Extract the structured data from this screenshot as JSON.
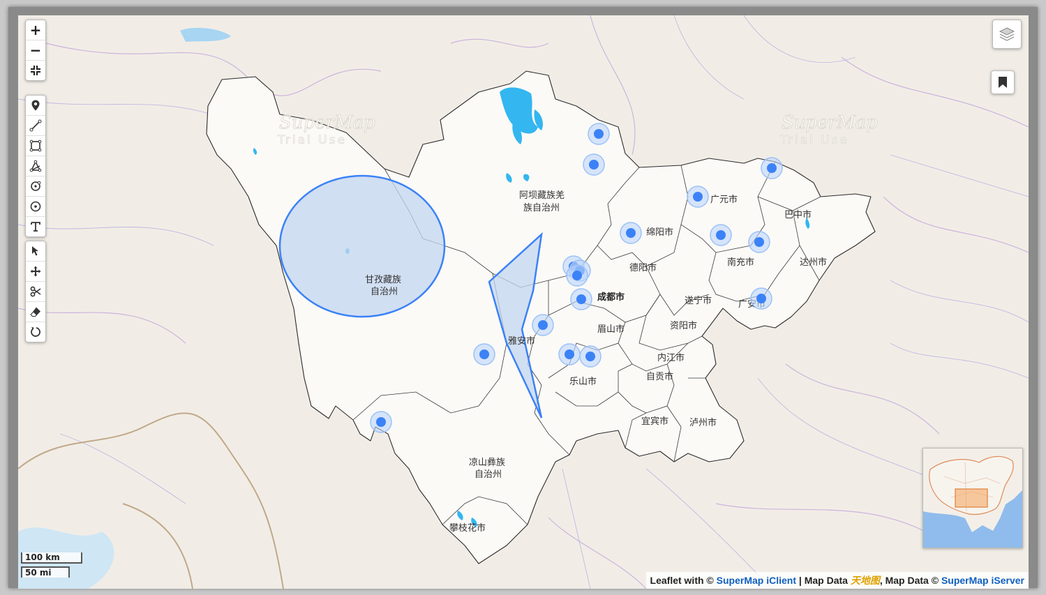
{
  "watermark": {
    "brand": "SuperMap",
    "sub": "Trial Use"
  },
  "regions": [
    {
      "name": "阿坝藏族羌族自治州",
      "lines": [
        "阿坝藏族羌",
        "族自治州"
      ]
    },
    {
      "name": "甘孜藏族自治州",
      "lines": [
        "甘孜藏族",
        "自治州"
      ]
    },
    {
      "name": "凉山彝族自治州",
      "lines": [
        "凉山彝族",
        "自治州"
      ]
    },
    {
      "name": "广元市",
      "lines": [
        "广元市"
      ]
    },
    {
      "name": "巴中市",
      "lines": [
        "巴中市"
      ]
    },
    {
      "name": "绵阳市",
      "lines": [
        "绵阳市"
      ]
    },
    {
      "name": "南充市",
      "lines": [
        "南充市"
      ]
    },
    {
      "name": "达州市",
      "lines": [
        "达州市"
      ]
    },
    {
      "name": "德阳市",
      "lines": [
        "德阳市"
      ]
    },
    {
      "name": "成都市",
      "lines": [
        "成都市"
      ]
    },
    {
      "name": "遂宁市",
      "lines": [
        "遂宁市"
      ]
    },
    {
      "name": "广安市",
      "lines": [
        "广安市"
      ]
    },
    {
      "name": "眉山市",
      "lines": [
        "眉山市"
      ]
    },
    {
      "name": "资阳市",
      "lines": [
        "资阳市"
      ]
    },
    {
      "name": "雅安市",
      "lines": [
        "雅安市"
      ]
    },
    {
      "name": "内江市",
      "lines": [
        "内江市"
      ]
    },
    {
      "name": "乐山市",
      "lines": [
        "乐山市"
      ]
    },
    {
      "name": "自贡市",
      "lines": [
        "自贡市"
      ]
    },
    {
      "name": "宜宾市",
      "lines": [
        "宜宾市"
      ]
    },
    {
      "name": "泸州市",
      "lines": [
        "泸州市"
      ]
    },
    {
      "name": "攀枝花市",
      "lines": [
        "攀枝花市"
      ]
    }
  ],
  "markers": 20,
  "controls": {
    "zoom": [
      "zoom-in",
      "zoom-out",
      "fit-extent"
    ],
    "draw": [
      "draw-marker",
      "draw-polyline",
      "draw-rectangle",
      "draw-polygon",
      "draw-circle-marker",
      "draw-circle",
      "draw-text"
    ],
    "edit": [
      "edit-vertices",
      "drag-move",
      "cut-polygon",
      "erase",
      "rotate"
    ]
  },
  "icons": {
    "zoom_in": "+",
    "zoom_out": "−",
    "layers": "layers-icon",
    "bookmark": "bookmark-icon"
  },
  "scale": {
    "km": "100 km",
    "mi": "50 mi"
  },
  "attribution": {
    "prefix": "Leaflet with © ",
    "iclient": "SuperMap iClient",
    "sep1": " | Map Data ",
    "tianditu": "天地图",
    "sep2": ", Map Data © ",
    "iserver": "SuperMap iServer"
  },
  "colors": {
    "accent": "#3b82f6",
    "region_fill": "#fbfaf7",
    "water": "#34b6f0",
    "shape_fill": "#c3d6f0"
  }
}
